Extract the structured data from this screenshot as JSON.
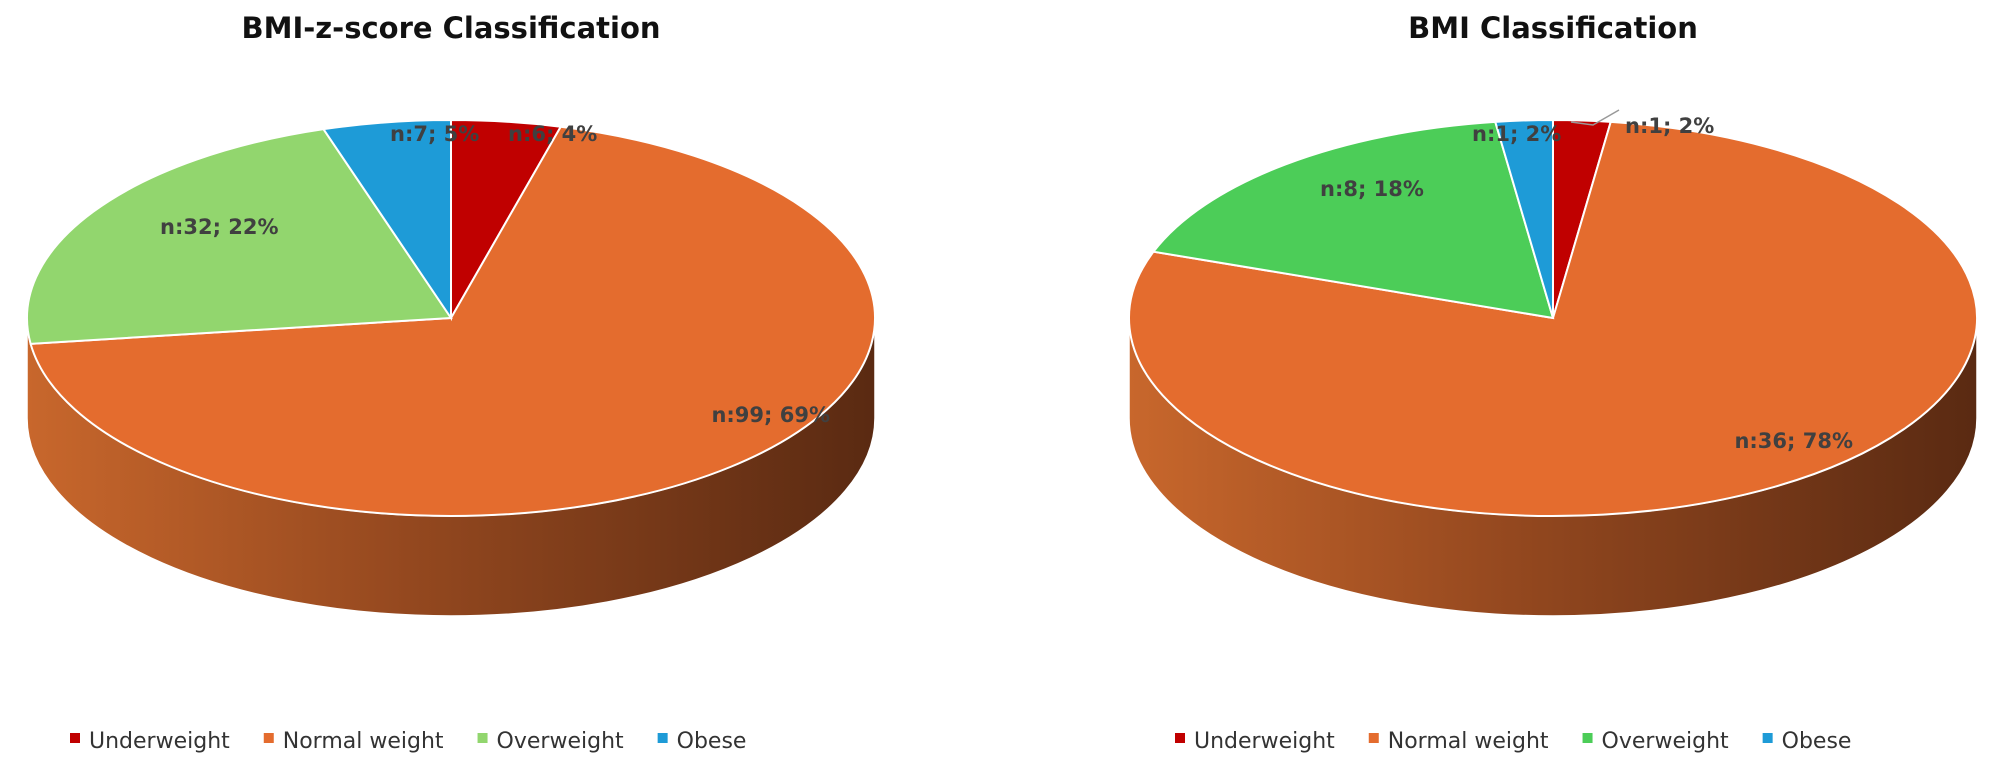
{
  "chart_data": [
    {
      "type": "pie",
      "style": "3d",
      "title": "BMI-z-score Classification",
      "categories": [
        "Underweight",
        "Normal weight",
        "Overweight",
        "Obese"
      ],
      "values": [
        6,
        99,
        32,
        7
      ],
      "percents": [
        4,
        69,
        22,
        5
      ],
      "data_labels": [
        "n:6; 4%",
        "n:99; 69%",
        "n:32; 22%",
        "n:7; 5%"
      ],
      "colors": [
        "#c00000",
        "#e46c2e",
        "#92d66e",
        "#1e9bd7"
      ],
      "legend": "bottom"
    },
    {
      "type": "pie",
      "style": "3d",
      "title": "BMI Classification",
      "categories": [
        "Underweight",
        "Normal weight",
        "Overweight",
        "Obese"
      ],
      "values": [
        1,
        36,
        8,
        1
      ],
      "percents": [
        2,
        78,
        18,
        2
      ],
      "data_labels": [
        "n:1; 2%",
        "n:36; 78%",
        "n:8; 18%",
        "n:1; 2%"
      ],
      "colors": [
        "#c00000",
        "#e46c2e",
        "#4ccd58",
        "#1e9bd7"
      ],
      "legend": "bottom"
    }
  ]
}
